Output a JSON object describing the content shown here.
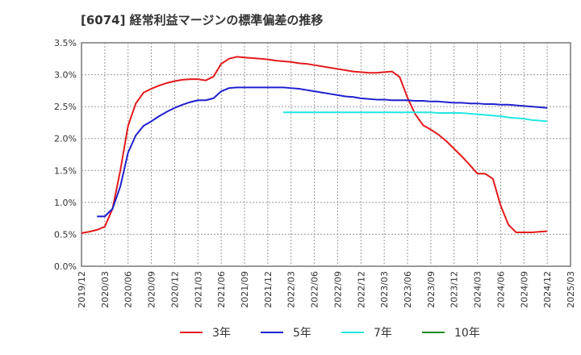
{
  "chart_data": {
    "type": "line",
    "title": "[6074]  経常利益マージンの標準偏差の推移",
    "xlabel": "",
    "ylabel": "",
    "ylim": [
      0,
      3.5
    ],
    "y_ticks": [
      "0.0%",
      "0.5%",
      "1.0%",
      "1.5%",
      "2.0%",
      "2.5%",
      "3.0%",
      "3.5%"
    ],
    "x_ticks": [
      "2019/12",
      "2020/03",
      "2020/06",
      "2020/09",
      "2020/12",
      "2021/03",
      "2021/06",
      "2021/09",
      "2021/12",
      "2022/03",
      "2022/06",
      "2022/09",
      "2022/12",
      "2023/03",
      "2023/06",
      "2023/09",
      "2023/12",
      "2024/03",
      "2024/06",
      "2024/09",
      "2024/12",
      "2025/03"
    ],
    "grid": true,
    "legend_position": "bottom",
    "series": [
      {
        "name": "3年",
        "color": "#e31a1c",
        "points": [
          [
            0,
            0.52
          ],
          [
            1,
            0.54
          ],
          [
            2,
            0.57
          ],
          [
            3,
            0.62
          ],
          [
            4,
            0.9
          ],
          [
            5,
            1.5
          ],
          [
            6,
            2.2
          ],
          [
            7,
            2.55
          ],
          [
            8,
            2.72
          ],
          [
            9,
            2.78
          ],
          [
            10,
            2.83
          ],
          [
            11,
            2.87
          ],
          [
            12,
            2.9
          ],
          [
            13,
            2.92
          ],
          [
            14,
            2.93
          ],
          [
            15,
            2.93
          ],
          [
            16,
            2.91
          ],
          [
            17,
            2.97
          ],
          [
            18,
            3.17
          ],
          [
            19,
            3.25
          ],
          [
            20,
            3.28
          ],
          [
            21,
            3.27
          ],
          [
            22,
            3.26
          ],
          [
            23,
            3.25
          ],
          [
            24,
            3.24
          ],
          [
            25,
            3.22
          ],
          [
            26,
            3.21
          ],
          [
            27,
            3.2
          ],
          [
            28,
            3.18
          ],
          [
            29,
            3.17
          ],
          [
            30,
            3.15
          ],
          [
            31,
            3.13
          ],
          [
            32,
            3.11
          ],
          [
            33,
            3.09
          ],
          [
            34,
            3.07
          ],
          [
            35,
            3.05
          ],
          [
            36,
            3.04
          ],
          [
            37,
            3.03
          ],
          [
            38,
            3.03
          ],
          [
            39,
            3.04
          ],
          [
            40,
            3.05
          ],
          [
            41,
            2.96
          ],
          [
            42,
            2.64
          ],
          [
            43,
            2.38
          ],
          [
            44,
            2.21
          ],
          [
            45,
            2.14
          ],
          [
            46,
            2.06
          ],
          [
            47,
            1.96
          ],
          [
            48,
            1.84
          ],
          [
            49,
            1.72
          ],
          [
            50,
            1.59
          ],
          [
            51,
            1.45
          ],
          [
            52,
            1.45
          ],
          [
            53,
            1.37
          ],
          [
            54,
            0.95
          ],
          [
            55,
            0.65
          ],
          [
            56,
            0.53
          ],
          [
            57,
            0.53
          ],
          [
            58,
            0.53
          ],
          [
            59,
            0.54
          ],
          [
            60,
            0.55
          ]
        ]
      },
      {
        "name": "5年",
        "color": "#1f1fcf",
        "points": [
          [
            2,
            0.78
          ],
          [
            3,
            0.78
          ],
          [
            4,
            0.9
          ],
          [
            5,
            1.25
          ],
          [
            6,
            1.78
          ],
          [
            7,
            2.05
          ],
          [
            8,
            2.2
          ],
          [
            9,
            2.27
          ],
          [
            10,
            2.35
          ],
          [
            11,
            2.42
          ],
          [
            12,
            2.48
          ],
          [
            13,
            2.53
          ],
          [
            14,
            2.57
          ],
          [
            15,
            2.6
          ],
          [
            16,
            2.6
          ],
          [
            17,
            2.63
          ],
          [
            18,
            2.74
          ],
          [
            19,
            2.79
          ],
          [
            20,
            2.8
          ],
          [
            21,
            2.8
          ],
          [
            22,
            2.8
          ],
          [
            23,
            2.8
          ],
          [
            24,
            2.8
          ],
          [
            25,
            2.8
          ],
          [
            26,
            2.8
          ],
          [
            27,
            2.79
          ],
          [
            28,
            2.78
          ],
          [
            29,
            2.76
          ],
          [
            30,
            2.74
          ],
          [
            31,
            2.72
          ],
          [
            32,
            2.7
          ],
          [
            33,
            2.68
          ],
          [
            34,
            2.66
          ],
          [
            35,
            2.65
          ],
          [
            36,
            2.63
          ],
          [
            37,
            2.62
          ],
          [
            38,
            2.61
          ],
          [
            39,
            2.61
          ],
          [
            40,
            2.6
          ],
          [
            41,
            2.6
          ],
          [
            42,
            2.6
          ],
          [
            43,
            2.59
          ],
          [
            44,
            2.59
          ],
          [
            45,
            2.58
          ],
          [
            46,
            2.58
          ],
          [
            47,
            2.57
          ],
          [
            48,
            2.56
          ],
          [
            49,
            2.56
          ],
          [
            50,
            2.55
          ],
          [
            51,
            2.55
          ],
          [
            52,
            2.54
          ],
          [
            53,
            2.54
          ],
          [
            54,
            2.53
          ],
          [
            55,
            2.53
          ],
          [
            56,
            2.52
          ],
          [
            57,
            2.51
          ],
          [
            58,
            2.5
          ],
          [
            59,
            2.49
          ],
          [
            60,
            2.48
          ]
        ]
      },
      {
        "name": "7年",
        "color": "#22e6e6",
        "points": [
          [
            26,
            2.41
          ],
          [
            27,
            2.41
          ],
          [
            28,
            2.41
          ],
          [
            29,
            2.41
          ],
          [
            30,
            2.41
          ],
          [
            31,
            2.41
          ],
          [
            32,
            2.41
          ],
          [
            33,
            2.41
          ],
          [
            34,
            2.41
          ],
          [
            35,
            2.41
          ],
          [
            36,
            2.41
          ],
          [
            37,
            2.41
          ],
          [
            38,
            2.41
          ],
          [
            39,
            2.41
          ],
          [
            40,
            2.41
          ],
          [
            41,
            2.41
          ],
          [
            42,
            2.41
          ],
          [
            43,
            2.41
          ],
          [
            44,
            2.41
          ],
          [
            45,
            2.41
          ],
          [
            46,
            2.4
          ],
          [
            47,
            2.4
          ],
          [
            48,
            2.4
          ],
          [
            49,
            2.4
          ],
          [
            50,
            2.39
          ],
          [
            51,
            2.38
          ],
          [
            52,
            2.37
          ],
          [
            53,
            2.36
          ],
          [
            54,
            2.35
          ],
          [
            55,
            2.33
          ],
          [
            56,
            2.32
          ],
          [
            57,
            2.31
          ],
          [
            58,
            2.29
          ],
          [
            59,
            2.28
          ],
          [
            60,
            2.27
          ]
        ]
      },
      {
        "name": "10年",
        "color": "#228b22",
        "points": []
      }
    ]
  }
}
